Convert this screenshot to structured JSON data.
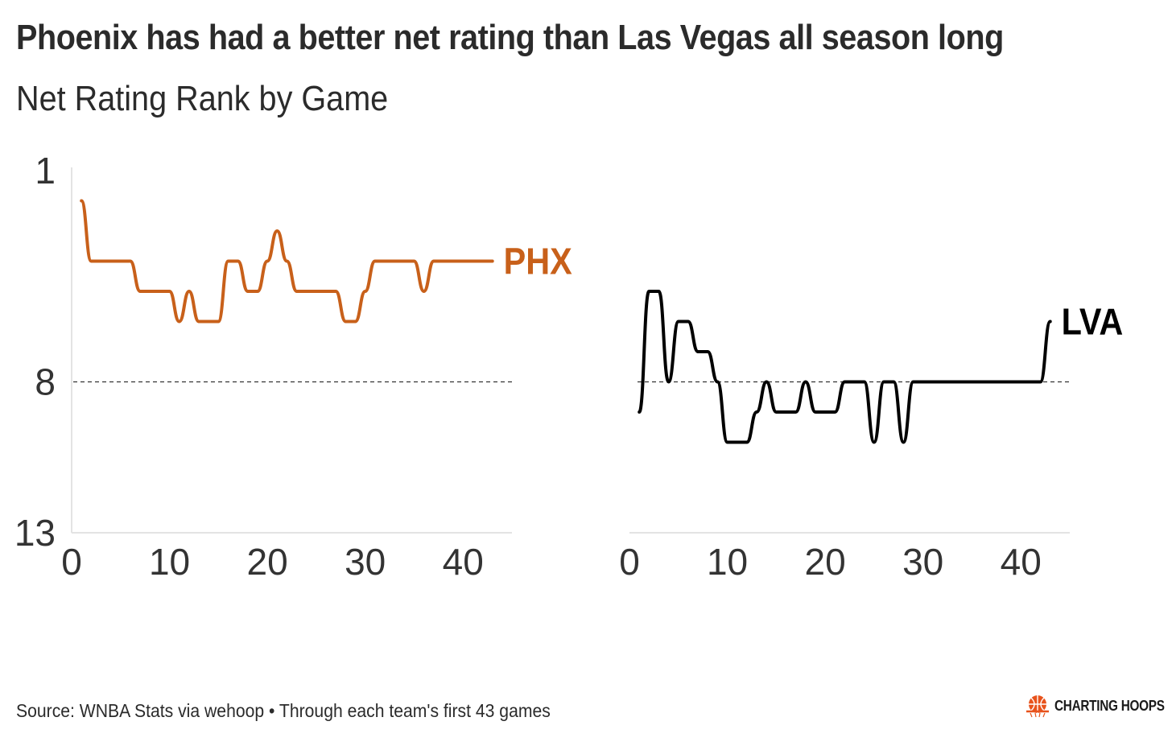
{
  "title": "Phoenix has had a better net rating than Las Vegas all season long",
  "subtitle": "Net Rating Rank by Game",
  "footer": "Source: WNBA Stats via wehoop • Through each team's first 43 games",
  "brand": {
    "name": "CHARTING HOOPS",
    "icon": "basketball-icon",
    "color": "#e8531c"
  },
  "chart_data": [
    {
      "type": "line",
      "team": "PHX",
      "color": "#c8601a",
      "x": [
        1,
        2,
        3,
        4,
        5,
        6,
        7,
        8,
        9,
        10,
        11,
        12,
        13,
        14,
        15,
        16,
        17,
        18,
        19,
        20,
        21,
        22,
        23,
        24,
        25,
        26,
        27,
        28,
        29,
        30,
        31,
        32,
        33,
        34,
        35,
        36,
        37,
        38,
        39,
        40,
        41,
        42,
        43
      ],
      "values": [
        2,
        4,
        4,
        4,
        4,
        4,
        5,
        5,
        5,
        5,
        6,
        5,
        6,
        6,
        6,
        4,
        4,
        5,
        5,
        4,
        3,
        4,
        5,
        5,
        5,
        5,
        5,
        6,
        6,
        5,
        4,
        4,
        4,
        4,
        4,
        5,
        4,
        4,
        4,
        4,
        4,
        4,
        4
      ],
      "xlim": [
        0,
        45
      ],
      "ylim": [
        1,
        13
      ],
      "y_inverted": true,
      "x_ticks": [
        "0",
        "10",
        "20",
        "30",
        "40"
      ],
      "y_ticks": [
        "1",
        "8",
        "13"
      ],
      "reference_line": 8,
      "label": "PHX"
    },
    {
      "type": "line",
      "team": "LVA",
      "color": "#000000",
      "x": [
        1,
        2,
        3,
        4,
        5,
        6,
        7,
        8,
        9,
        10,
        11,
        12,
        13,
        14,
        15,
        16,
        17,
        18,
        19,
        20,
        21,
        22,
        23,
        24,
        25,
        26,
        27,
        28,
        29,
        30,
        31,
        32,
        33,
        34,
        35,
        36,
        37,
        38,
        39,
        40,
        41,
        42,
        43
      ],
      "values": [
        9,
        5,
        5,
        8,
        6,
        6,
        7,
        7,
        8,
        10,
        10,
        10,
        9,
        8,
        9,
        9,
        9,
        8,
        9,
        9,
        9,
        8,
        8,
        8,
        10,
        8,
        8,
        10,
        8,
        8,
        8,
        8,
        8,
        8,
        8,
        8,
        8,
        8,
        8,
        8,
        8,
        8,
        6
      ],
      "xlim": [
        0,
        45
      ],
      "ylim": [
        1,
        13
      ],
      "y_inverted": true,
      "x_ticks": [
        "0",
        "10",
        "20",
        "30",
        "40"
      ],
      "reference_line": 8,
      "label": "LVA"
    }
  ]
}
